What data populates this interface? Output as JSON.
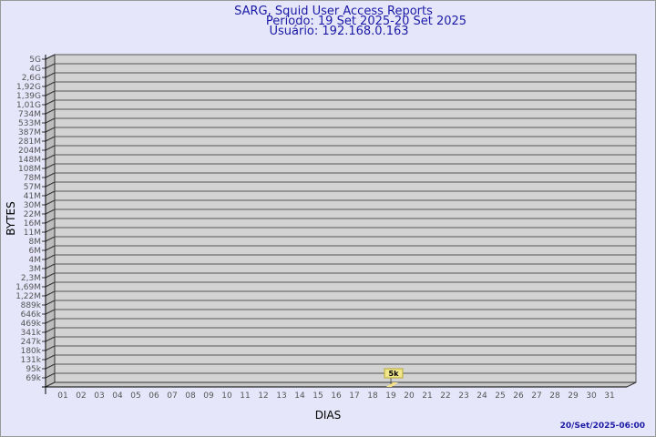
{
  "chart_data": {
    "type": "bar",
    "title": "SARG, Squid User Access Reports",
    "subtitle_period": "Período: 19 Set 2025-20 Set 2025",
    "subtitle_user": "Usuário: 192.168.0.163",
    "xlabel": "DIAS",
    "ylabel": "BYTES",
    "y_scale": "log",
    "y_ticks": [
      "5G",
      "4G",
      "2,6G",
      "1,92G",
      "1,39G",
      "1,01G",
      "734M",
      "533M",
      "387M",
      "281M",
      "204M",
      "148M",
      "108M",
      "78M",
      "57M",
      "41M",
      "30M",
      "22M",
      "16M",
      "11M",
      "8M",
      "6M",
      "4M",
      "3M",
      "2,3M",
      "1,69M",
      "1,22M",
      "889k",
      "646k",
      "469k",
      "341k",
      "247k",
      "180k",
      "131k",
      "95k",
      "69k"
    ],
    "categories": [
      "01",
      "02",
      "03",
      "04",
      "05",
      "06",
      "07",
      "08",
      "09",
      "10",
      "11",
      "12",
      "13",
      "14",
      "15",
      "16",
      "17",
      "18",
      "19",
      "20",
      "21",
      "22",
      "23",
      "24",
      "25",
      "26",
      "27",
      "28",
      "29",
      "30",
      "31"
    ],
    "bars": [
      {
        "day": "19",
        "value": 5000,
        "label": "5k"
      }
    ],
    "grid": true,
    "colors": {
      "background": "#e6e6fa",
      "plot": "#d3d3d3",
      "bar": "#f5e08a",
      "label_box": "#f0e68c",
      "title": "#1a1aa6"
    },
    "footer": "20/Set/2025-06:00"
  }
}
